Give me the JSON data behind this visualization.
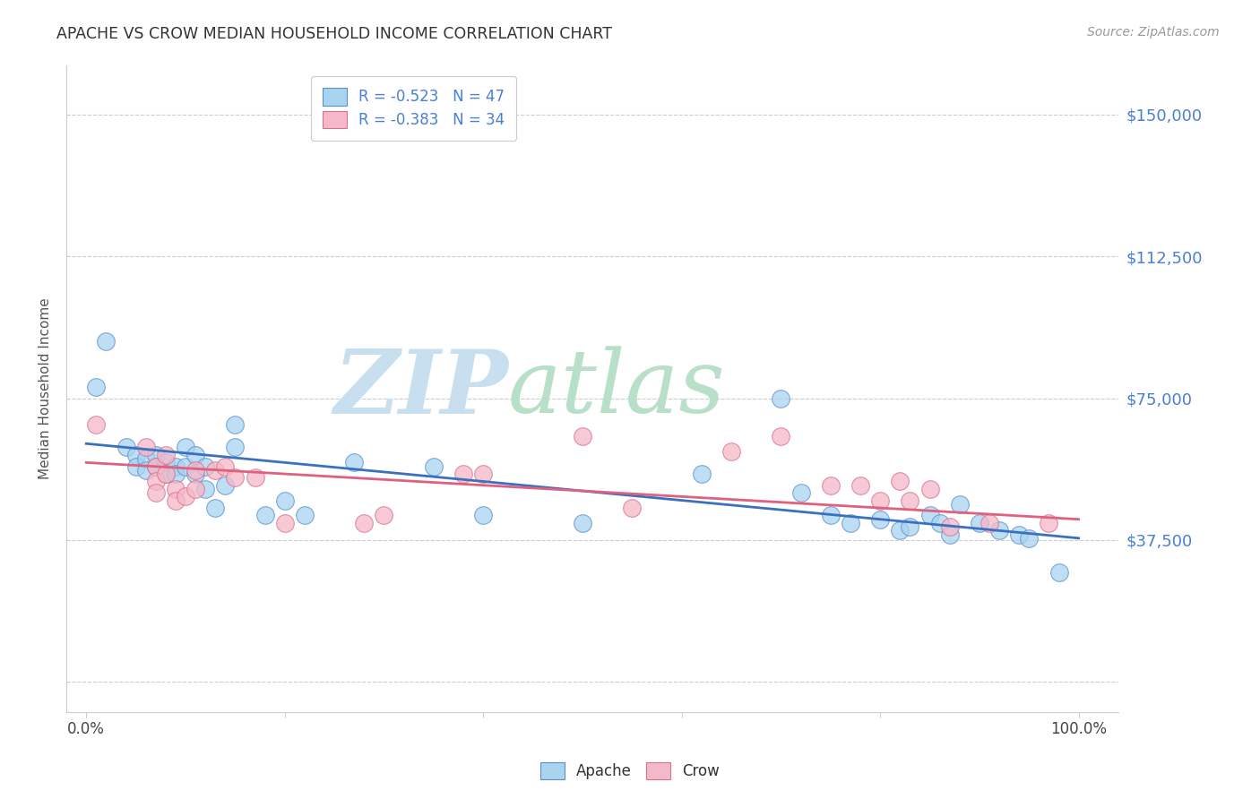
{
  "title": "APACHE VS CROW MEDIAN HOUSEHOLD INCOME CORRELATION CHART",
  "source": "Source: ZipAtlas.com",
  "ylabel": "Median Household Income",
  "yticks": [
    0,
    37500,
    75000,
    112500,
    150000
  ],
  "ytick_labels_right": [
    "",
    "$37,500",
    "$75,000",
    "$112,500",
    "$150,000"
  ],
  "xlim": [
    -0.02,
    1.04
  ],
  "ylim": [
    -8000,
    163000
  ],
  "xticks": [
    0.0,
    0.2,
    0.4,
    0.6,
    0.8,
    1.0
  ],
  "xtick_labels": [
    "0.0%",
    "",
    "",
    "",
    "",
    "100.0%"
  ],
  "legend1_label": "R = -0.523   N = 47",
  "legend2_label": "R = -0.383   N = 34",
  "apache_face_color": "#a8d4f0",
  "apache_edge_color": "#5b8fcc",
  "crow_face_color": "#f5b8c8",
  "crow_edge_color": "#d87090",
  "apache_line_color": "#3a70c0",
  "crow_line_color": "#e06080",
  "axis_label_color": "#4a7fd4",
  "title_color": "#333333",
  "source_color": "#999999",
  "grid_color": "#cccccc",
  "apache_trend_x": [
    0.0,
    1.0
  ],
  "apache_trend_y": [
    63000,
    38000
  ],
  "crow_trend_x": [
    0.0,
    1.0
  ],
  "crow_trend_y": [
    58000,
    43000
  ],
  "apache_x": [
    0.01,
    0.02,
    0.04,
    0.05,
    0.05,
    0.06,
    0.06,
    0.07,
    0.07,
    0.08,
    0.08,
    0.09,
    0.09,
    0.1,
    0.1,
    0.11,
    0.11,
    0.12,
    0.12,
    0.13,
    0.14,
    0.15,
    0.15,
    0.18,
    0.2,
    0.22,
    0.27,
    0.35,
    0.4,
    0.5,
    0.62,
    0.7,
    0.72,
    0.75,
    0.77,
    0.8,
    0.82,
    0.83,
    0.85,
    0.86,
    0.87,
    0.88,
    0.9,
    0.92,
    0.94,
    0.95,
    0.98
  ],
  "apache_y": [
    78000,
    90000,
    62000,
    60000,
    57000,
    59000,
    56000,
    60000,
    57000,
    58000,
    55000,
    57000,
    55000,
    62000,
    57000,
    60000,
    55000,
    57000,
    51000,
    46000,
    52000,
    68000,
    62000,
    44000,
    48000,
    44000,
    58000,
    57000,
    44000,
    42000,
    55000,
    75000,
    50000,
    44000,
    42000,
    43000,
    40000,
    41000,
    44000,
    42000,
    39000,
    47000,
    42000,
    40000,
    39000,
    38000,
    29000
  ],
  "crow_x": [
    0.01,
    0.06,
    0.07,
    0.07,
    0.07,
    0.08,
    0.08,
    0.09,
    0.09,
    0.1,
    0.11,
    0.11,
    0.13,
    0.14,
    0.15,
    0.17,
    0.2,
    0.28,
    0.3,
    0.38,
    0.4,
    0.5,
    0.55,
    0.65,
    0.7,
    0.75,
    0.78,
    0.8,
    0.82,
    0.83,
    0.85,
    0.87,
    0.91,
    0.97
  ],
  "crow_y": [
    68000,
    62000,
    57000,
    53000,
    50000,
    60000,
    55000,
    51000,
    48000,
    49000,
    51000,
    56000,
    56000,
    57000,
    54000,
    54000,
    42000,
    42000,
    44000,
    55000,
    55000,
    65000,
    46000,
    61000,
    65000,
    52000,
    52000,
    48000,
    53000,
    48000,
    51000,
    41000,
    42000,
    42000
  ]
}
